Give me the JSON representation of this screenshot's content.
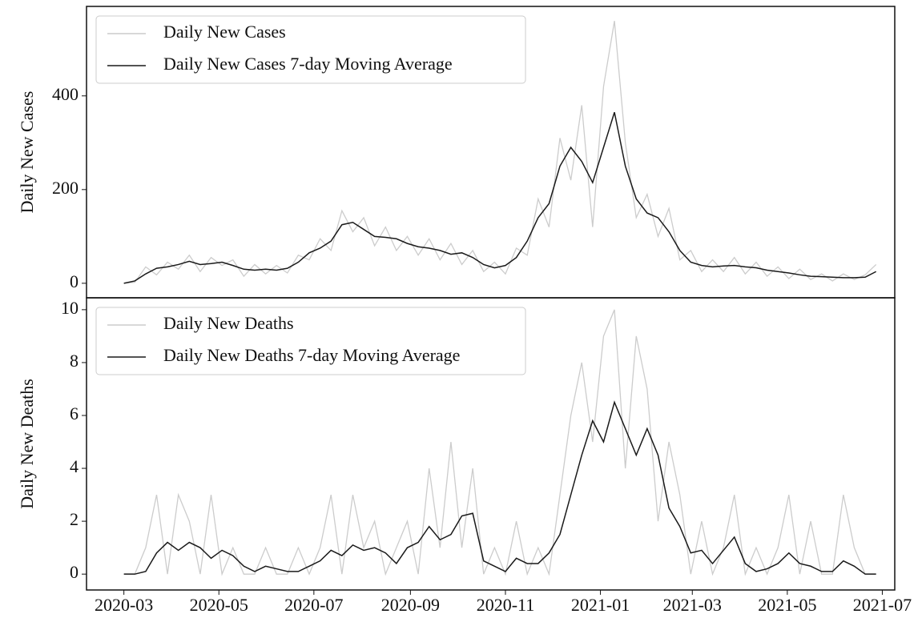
{
  "chart_data": [
    {
      "type": "line",
      "ylabel": "Daily New Cases",
      "legend": "upper left",
      "x": [
        0,
        7,
        14,
        21,
        28,
        35,
        42,
        49,
        56,
        63,
        70,
        77,
        84,
        91,
        98,
        105,
        112,
        119,
        126,
        133,
        140,
        147,
        154,
        161,
        168,
        175,
        182,
        189,
        196,
        203,
        210,
        217,
        224,
        231,
        238,
        245,
        252,
        259,
        266,
        273,
        280,
        287,
        294,
        301,
        308,
        315,
        322,
        329,
        336,
        343,
        350,
        357,
        364,
        371,
        378,
        385,
        392,
        399,
        406,
        413,
        420,
        427,
        434,
        441,
        448,
        455,
        462,
        469,
        476,
        483
      ],
      "xlim": [
        -24,
        495
      ],
      "ylim": [
        -31,
        591
      ],
      "yticks": [
        0,
        200,
        400
      ],
      "series": [
        {
          "name": "Daily New Cases",
          "color": "#cccccc",
          "values": [
            0,
            2,
            35,
            18,
            45,
            30,
            60,
            25,
            55,
            38,
            50,
            15,
            40,
            20,
            38,
            22,
            60,
            50,
            95,
            70,
            155,
            110,
            140,
            80,
            120,
            70,
            100,
            60,
            95,
            50,
            85,
            40,
            70,
            25,
            45,
            20,
            75,
            60,
            180,
            120,
            310,
            220,
            380,
            120,
            420,
            560,
            300,
            140,
            190,
            100,
            160,
            50,
            70,
            25,
            50,
            25,
            55,
            20,
            45,
            15,
            35,
            10,
            30,
            8,
            20,
            5,
            20,
            8,
            18,
            40
          ]
        },
        {
          "name": "Daily New Cases 7-day Moving Average",
          "color": "#1a1a1a",
          "values": [
            0,
            5,
            20,
            32,
            35,
            40,
            47,
            40,
            42,
            45,
            38,
            30,
            28,
            30,
            28,
            32,
            45,
            65,
            75,
            90,
            125,
            130,
            115,
            100,
            98,
            95,
            85,
            78,
            75,
            70,
            62,
            65,
            55,
            40,
            33,
            38,
            55,
            90,
            140,
            170,
            250,
            290,
            260,
            215,
            290,
            365,
            250,
            180,
            150,
            140,
            110,
            70,
            45,
            38,
            35,
            37,
            38,
            35,
            33,
            28,
            25,
            22,
            18,
            15,
            14,
            13,
            12,
            12,
            13,
            25
          ]
        }
      ]
    },
    {
      "type": "line",
      "ylabel": "Daily New Deaths",
      "legend": "upper left",
      "x": [
        0,
        7,
        14,
        21,
        28,
        35,
        42,
        49,
        56,
        63,
        70,
        77,
        84,
        91,
        98,
        105,
        112,
        119,
        126,
        133,
        140,
        147,
        154,
        161,
        168,
        175,
        182,
        189,
        196,
        203,
        210,
        217,
        224,
        231,
        238,
        245,
        252,
        259,
        266,
        273,
        280,
        287,
        294,
        301,
        308,
        315,
        322,
        329,
        336,
        343,
        350,
        357,
        364,
        371,
        378,
        385,
        392,
        399,
        406,
        413,
        420,
        427,
        434,
        441,
        448,
        455,
        462,
        469,
        476,
        483
      ],
      "xlim": [
        -24,
        495
      ],
      "xticks": [
        {
          "value": 0,
          "label": "2020-03"
        },
        {
          "value": 61,
          "label": "2020-05"
        },
        {
          "value": 122,
          "label": "2020-07"
        },
        {
          "value": 184,
          "label": "2020-09"
        },
        {
          "value": 245,
          "label": "2020-11"
        },
        {
          "value": 306,
          "label": "2021-01"
        },
        {
          "value": 365,
          "label": "2021-03"
        },
        {
          "value": 426,
          "label": "2021-05"
        },
        {
          "value": 487,
          "label": "2021-07"
        }
      ],
      "ylim": [
        -0.6,
        10.45
      ],
      "yticks": [
        0,
        2,
        4,
        6,
        8,
        10
      ],
      "series": [
        {
          "name": "Daily New Deaths",
          "color": "#cccccc",
          "values": [
            0,
            0,
            1,
            3,
            0,
            3,
            2,
            0,
            3,
            0,
            1,
            0,
            0,
            1,
            0,
            0,
            1,
            0,
            1,
            3,
            0,
            3,
            1,
            2,
            0,
            1,
            2,
            0,
            4,
            1,
            5,
            1,
            4,
            0,
            1,
            0,
            2,
            0,
            1,
            0,
            3,
            6,
            8,
            5,
            9,
            10,
            4,
            9,
            7,
            2,
            5,
            3,
            0,
            2,
            0,
            1,
            3,
            0,
            1,
            0,
            1,
            3,
            0,
            2,
            0,
            0,
            3,
            1,
            0,
            0
          ]
        },
        {
          "name": "Daily New Deaths 7-day Moving Average",
          "color": "#1a1a1a",
          "values": [
            0,
            0,
            0.1,
            0.8,
            1.2,
            0.9,
            1.2,
            1.0,
            0.6,
            0.9,
            0.7,
            0.3,
            0.1,
            0.3,
            0.2,
            0.1,
            0.1,
            0.3,
            0.5,
            0.9,
            0.7,
            1.1,
            0.9,
            1.0,
            0.8,
            0.4,
            1.0,
            1.2,
            1.8,
            1.3,
            1.5,
            2.2,
            2.3,
            0.5,
            0.3,
            0.1,
            0.6,
            0.4,
            0.4,
            0.8,
            1.5,
            3.0,
            4.5,
            5.8,
            5.0,
            6.5,
            5.5,
            4.5,
            5.5,
            4.5,
            2.5,
            1.8,
            0.8,
            0.9,
            0.4,
            0.9,
            1.4,
            0.4,
            0.1,
            0.2,
            0.4,
            0.8,
            0.4,
            0.3,
            0.1,
            0.1,
            0.5,
            0.3,
            0,
            0
          ]
        }
      ]
    }
  ]
}
